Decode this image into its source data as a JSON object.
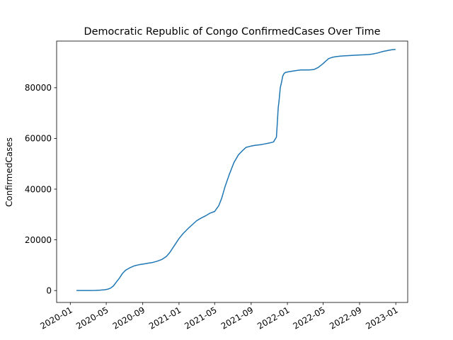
{
  "chart_data": {
    "type": "line",
    "title": "Democratic Republic of Congo  ConfirmedCases Over Time",
    "xlabel": "",
    "ylabel": "ConfirmedCases",
    "x_ticks": [
      "2020-01",
      "2020-05",
      "2020-09",
      "2021-01",
      "2021-05",
      "2021-09",
      "2022-01",
      "2022-05",
      "2022-09",
      "2023-01"
    ],
    "y_ticks": [
      0,
      20000,
      40000,
      60000,
      80000
    ],
    "y_tick_labels": [
      "0",
      "20000",
      "40000",
      "60000",
      "80000"
    ],
    "xlim": [
      "2019-11-16",
      "2023-02-10"
    ],
    "ylim": [
      -4700,
      98400
    ],
    "grid": false,
    "color": "#1f77b4",
    "series": [
      {
        "x": [
          "2020-01-22",
          "2020-03-10",
          "2020-03-25",
          "2020-04-10",
          "2020-04-25",
          "2020-05-05",
          "2020-05-15",
          "2020-05-25",
          "2020-06-05",
          "2020-06-15",
          "2020-06-25",
          "2020-07-05",
          "2020-07-20",
          "2020-08-05",
          "2020-08-20",
          "2020-09-05",
          "2020-09-20",
          "2020-10-05",
          "2020-10-20",
          "2020-11-05",
          "2020-11-20",
          "2020-12-01",
          "2020-12-15",
          "2021-01-01",
          "2021-01-15",
          "2021-02-01",
          "2021-02-15",
          "2021-03-01",
          "2021-03-15",
          "2021-04-01",
          "2021-04-15",
          "2021-05-01",
          "2021-05-15",
          "2021-05-25",
          "2021-06-05",
          "2021-06-20",
          "2021-07-05",
          "2021-07-20",
          "2021-08-01",
          "2021-08-15",
          "2021-09-01",
          "2021-09-15",
          "2021-10-01",
          "2021-10-15",
          "2021-11-01",
          "2021-11-15",
          "2021-11-25",
          "2021-11-28",
          "2021-12-01",
          "2021-12-04",
          "2021-12-08",
          "2021-12-12",
          "2021-12-16",
          "2021-12-20",
          "2021-12-25",
          "2022-01-01",
          "2022-01-15",
          "2022-02-01",
          "2022-02-15",
          "2022-03-01",
          "2022-03-15",
          "2022-04-01",
          "2022-04-15",
          "2022-05-01",
          "2022-05-10",
          "2022-05-20",
          "2022-06-01",
          "2022-06-15",
          "2022-07-01",
          "2022-07-15",
          "2022-08-01",
          "2022-08-15",
          "2022-09-01",
          "2022-09-15",
          "2022-10-01",
          "2022-10-15",
          "2022-11-01",
          "2022-11-15",
          "2022-12-01",
          "2022-12-10",
          "2022-12-20",
          "2022-12-31"
        ],
        "values": [
          0,
          10,
          50,
          150,
          300,
          500,
          900,
          1800,
          3500,
          5000,
          6800,
          8000,
          9000,
          9800,
          10200,
          10500,
          10800,
          11100,
          11600,
          12300,
          13500,
          15000,
          17500,
          20500,
          22500,
          24500,
          26000,
          27500,
          28500,
          29500,
          30500,
          31200,
          33500,
          36500,
          41000,
          46000,
          50500,
          53500,
          55000,
          56500,
          57000,
          57300,
          57500,
          57800,
          58200,
          58600,
          60500,
          66000,
          72000,
          75000,
          80000,
          82000,
          84500,
          85500,
          86000,
          86200,
          86500,
          86800,
          87000,
          87000,
          87000,
          87200,
          88000,
          89500,
          90500,
          91500,
          92000,
          92300,
          92500,
          92600,
          92700,
          92800,
          92900,
          93000,
          93100,
          93300,
          93700,
          94200,
          94600,
          94800,
          95000,
          95100
        ]
      }
    ]
  }
}
